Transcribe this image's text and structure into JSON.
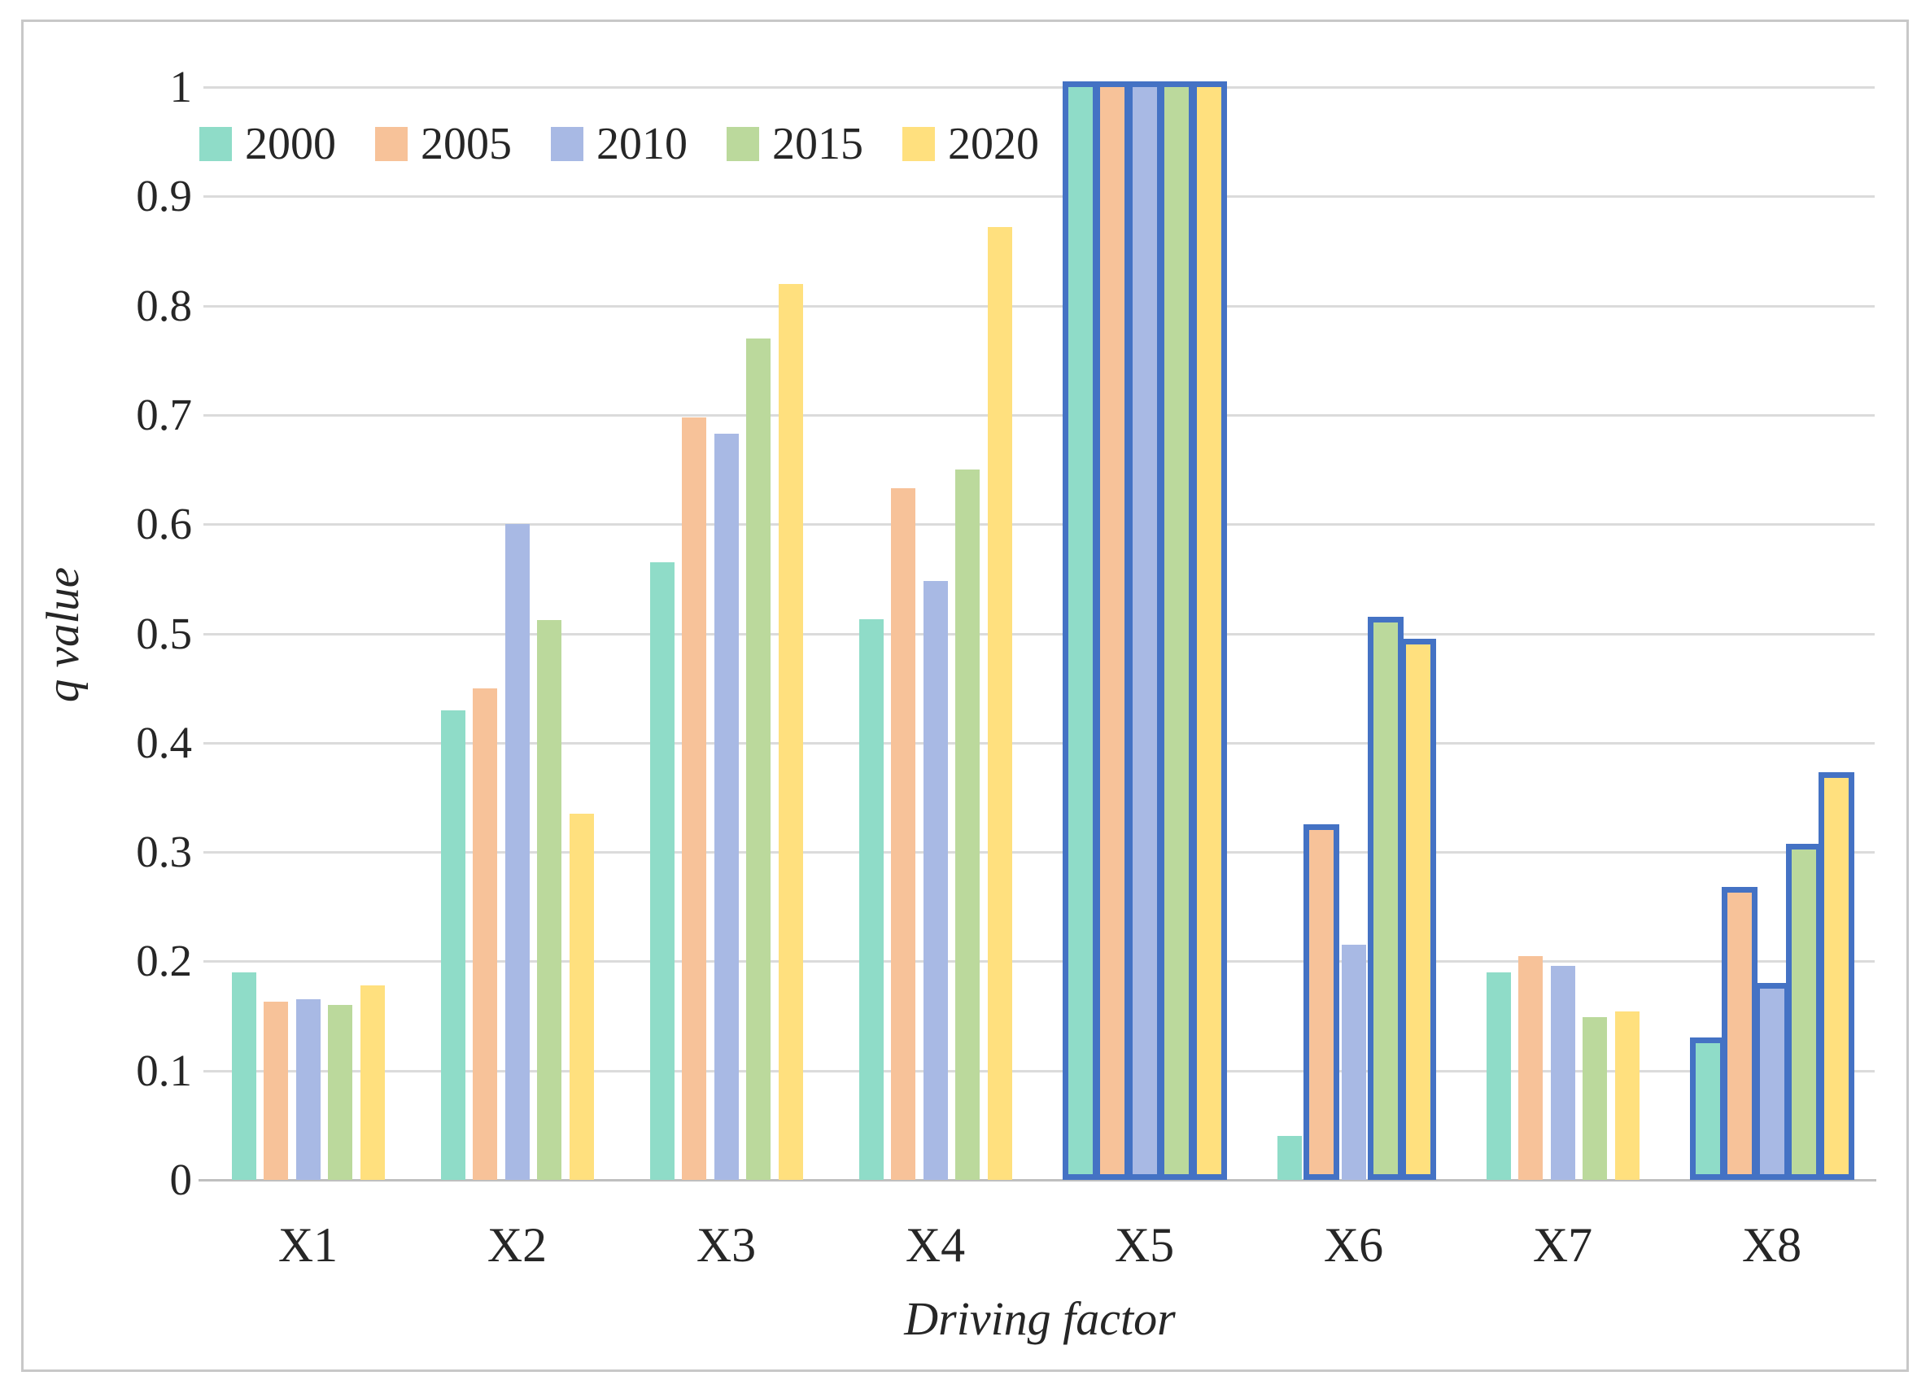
{
  "figure": {
    "background": "#ffffff",
    "frame_border_color": "#c8c8c8"
  },
  "chart_data": {
    "type": "bar",
    "title": "",
    "xlabel": "Driving factor",
    "ylabel": "q value",
    "categories": [
      "X1",
      "X2",
      "X3",
      "X4",
      "X5",
      "X6",
      "X7",
      "X8"
    ],
    "y_ticks": [
      "1",
      "0.9",
      "0.8",
      "0.7",
      "0.6",
      "0.5",
      "0.4",
      "0.3",
      "0.2",
      "0.1",
      "0"
    ],
    "ylim": [
      0,
      1
    ],
    "grid": "horizontal",
    "gridline_color": "#dbdbdb",
    "axis_line_color": "#bfbfbf",
    "text_color": "#262626",
    "legend_position": "top-left-inside",
    "highlight_border_color": "#4472c4",
    "highlight_note": "bars outlined in blue",
    "series": [
      {
        "name": "2000",
        "color": "#8fdcc8",
        "values": [
          0.19,
          0.43,
          0.565,
          0.513,
          1.0,
          0.04,
          0.19,
          0.125
        ],
        "highlighted": [
          false,
          false,
          false,
          false,
          true,
          false,
          false,
          true
        ]
      },
      {
        "name": "2005",
        "color": "#f7c299",
        "values": [
          0.163,
          0.45,
          0.698,
          0.633,
          1.0,
          0.32,
          0.205,
          0.263
        ],
        "highlighted": [
          false,
          false,
          false,
          false,
          true,
          true,
          false,
          true
        ]
      },
      {
        "name": "2010",
        "color": "#a8b9e4",
        "values": [
          0.165,
          0.6,
          0.683,
          0.548,
          1.0,
          0.215,
          0.196,
          0.175
        ],
        "highlighted": [
          false,
          false,
          false,
          false,
          true,
          false,
          false,
          true
        ]
      },
      {
        "name": "2015",
        "color": "#bbd99c",
        "values": [
          0.16,
          0.512,
          0.77,
          0.65,
          1.0,
          0.51,
          0.149,
          0.302
        ],
        "highlighted": [
          false,
          false,
          false,
          false,
          true,
          true,
          false,
          true
        ]
      },
      {
        "name": "2020",
        "color": "#ffe07e",
        "values": [
          0.178,
          0.335,
          0.82,
          0.872,
          1.0,
          0.49,
          0.154,
          0.368
        ],
        "highlighted": [
          false,
          false,
          false,
          false,
          true,
          true,
          false,
          true
        ]
      }
    ]
  }
}
